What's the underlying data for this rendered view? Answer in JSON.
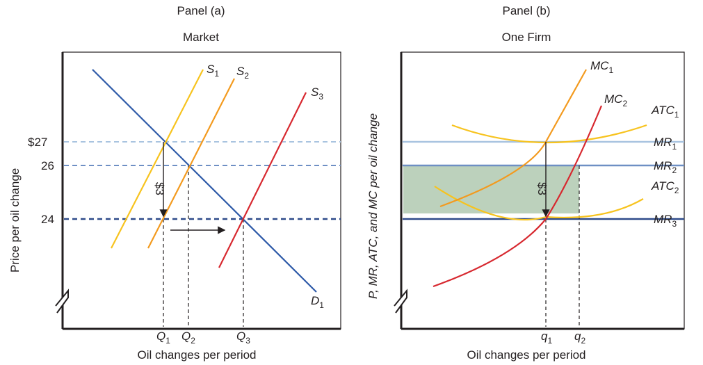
{
  "chart_data": [
    {
      "type": "line",
      "panel_label": "Panel (a)",
      "title": "Market",
      "xlabel": "Oil changes per period",
      "ylabel": "Price per oil change",
      "y_ticks": [
        "$27",
        "26",
        "24"
      ],
      "y_values": [
        27,
        26,
        24
      ],
      "x_ticks": [
        {
          "main": "Q",
          "sub": "1"
        },
        {
          "main": "Q",
          "sub": "2"
        },
        {
          "main": "Q",
          "sub": "3"
        }
      ],
      "series": [
        {
          "name": "D",
          "sub": "1",
          "color": "#2e5aa8"
        },
        {
          "name": "S",
          "sub": "1",
          "color": "#f7c31e"
        },
        {
          "name": "S",
          "sub": "2",
          "color": "#f39a1e"
        },
        {
          "name": "S",
          "sub": "3",
          "color": "#d7282f"
        }
      ],
      "annotations": [
        "$3"
      ],
      "price_drop": 3
    },
    {
      "type": "line",
      "panel_label": "Panel (b)",
      "title": "One Firm",
      "xlabel": "Oil changes per period",
      "ylabel": "P, MR, ATC, and MC per oil change",
      "x_ticks": [
        {
          "main": "q",
          "sub": "1"
        },
        {
          "main": "q",
          "sub": "2"
        }
      ],
      "series": [
        {
          "name": "MC",
          "sub": "1",
          "color": "#f39a1e"
        },
        {
          "name": "MC",
          "sub": "2",
          "color": "#d7282f"
        },
        {
          "name": "ATC",
          "sub": "1",
          "color": "#f7c31e"
        },
        {
          "name": "ATC",
          "sub": "2",
          "color": "#f7c31e"
        },
        {
          "name": "MR",
          "sub": "1",
          "color": "#a9c4e0",
          "price": 27
        },
        {
          "name": "MR",
          "sub": "2",
          "color": "#6e8fc4",
          "price": 26
        },
        {
          "name": "MR",
          "sub": "3",
          "color": "#2e4a8a",
          "price": 24
        }
      ],
      "annotations": [
        "$3"
      ],
      "profit_area_color": "#a6c2a6"
    }
  ]
}
